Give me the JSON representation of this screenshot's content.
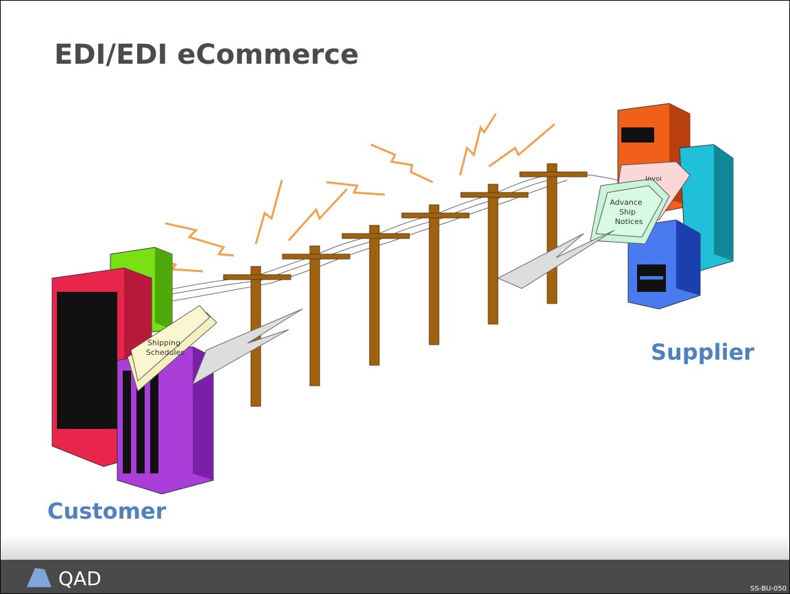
{
  "header": {
    "title": "EDI/EDI eCommerce"
  },
  "nodes": [
    {
      "label": "Customer",
      "document": [
        "Shipping",
        "Schedules"
      ]
    },
    {
      "label": "Supplier",
      "document": [
        "Advance",
        "Ship",
        "Notices"
      ],
      "back_document": "Invoi"
    }
  ],
  "footer": {
    "logo": "QAD",
    "code": "SS-BU-050"
  }
}
